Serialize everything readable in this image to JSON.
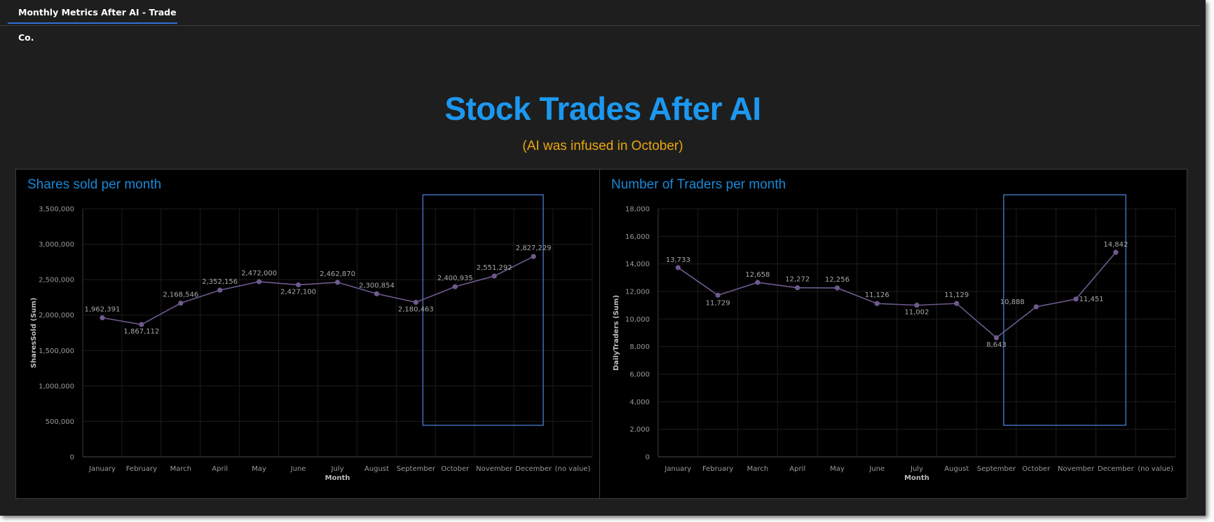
{
  "tab": {
    "label": "Monthly Metrics After AI - Trade Co."
  },
  "header": {
    "title": "Stock Trades After AI",
    "subtitle": "(AI was infused in October)"
  },
  "colors": {
    "background": "#1e1e1e",
    "panel": "#000000",
    "title": "#1c98f0",
    "subtitle": "#e8a80c",
    "series": "#6e5a8e",
    "highlight_box": "#3f6fb5",
    "tab_accent": "#2f6fd6"
  },
  "chart_data": [
    {
      "type": "line",
      "title": "Shares sold per month",
      "xlabel": "Month",
      "ylabel": "SharesSold (Sum)",
      "categories": [
        "January",
        "February",
        "March",
        "April",
        "May",
        "June",
        "July",
        "August",
        "September",
        "October",
        "November",
        "December",
        "(no value)"
      ],
      "ylim": [
        0,
        3500000
      ],
      "yticks": [
        0,
        500000,
        1000000,
        1500000,
        2000000,
        2500000,
        3000000,
        3500000
      ],
      "ytick_labels": [
        "0",
        "500,000",
        "1,000,000",
        "1,500,000",
        "2,000,000",
        "2,500,000",
        "3,000,000",
        "3,500,000"
      ],
      "grid": true,
      "values": [
        1962391,
        1867112,
        2168546,
        2352156,
        2472000,
        2427100,
        2462870,
        2300854,
        2180463,
        2400935,
        2551292,
        2827229,
        null
      ],
      "data_labels": [
        "1,962,391",
        "1,867,112",
        "2,168,546",
        "2,352,156",
        "2,472,000",
        "2,427,100",
        "2,462,870",
        "2,300,854",
        "2,180,463",
        "2,400,935",
        "2,551,292",
        "2,827,229",
        ""
      ],
      "highlight": {
        "from": "October",
        "to": "December"
      }
    },
    {
      "type": "line",
      "title": "Number of Traders per month",
      "xlabel": "Month",
      "ylabel": "DailyTraders (Sum)",
      "categories": [
        "January",
        "February",
        "March",
        "April",
        "May",
        "June",
        "July",
        "August",
        "September",
        "October",
        "November",
        "December",
        "(no value)"
      ],
      "ylim": [
        0,
        18000
      ],
      "yticks": [
        0,
        2000,
        4000,
        6000,
        8000,
        10000,
        12000,
        14000,
        16000,
        18000
      ],
      "ytick_labels": [
        "0",
        "2,000",
        "4,000",
        "6,000",
        "8,000",
        "10,000",
        "12,000",
        "14,000",
        "16,000",
        "18,000"
      ],
      "grid": true,
      "values": [
        13733,
        11729,
        12658,
        12272,
        12256,
        11126,
        11002,
        11129,
        8643,
        10888,
        11451,
        14842,
        null
      ],
      "data_labels": [
        "13,733",
        "11,729",
        "12,658",
        "12,272",
        "12,256",
        "11,126",
        "11,002",
        "11,129",
        "8,643",
        "10,888",
        "11,451",
        "14,842",
        ""
      ],
      "highlight": {
        "from": "October",
        "to": "December"
      }
    }
  ]
}
